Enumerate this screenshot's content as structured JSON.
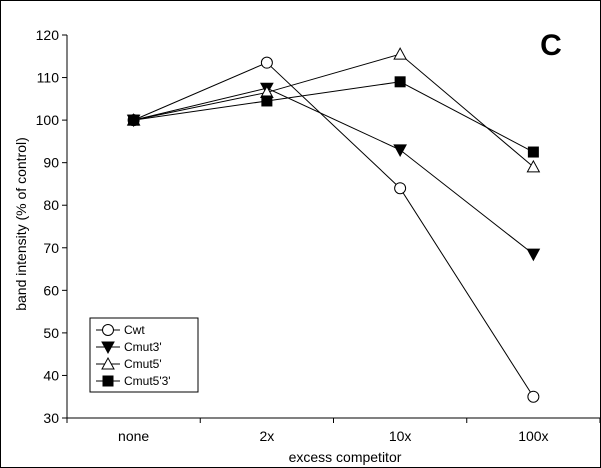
{
  "chart_data": {
    "type": "line",
    "panel_label": "C",
    "title": "",
    "xlabel": "excess competitor",
    "ylabel": "band intensity (% of control)",
    "categories": [
      "none",
      "2x",
      "10x",
      "100x"
    ],
    "ylim": [
      30,
      120
    ],
    "yticks": [
      30,
      40,
      50,
      60,
      70,
      80,
      90,
      100,
      110,
      120
    ],
    "grid": false,
    "legend_position": "bottom-left",
    "series": [
      {
        "name": "Cwt",
        "marker": "circle-open",
        "values": [
          100,
          113.5,
          84,
          35
        ]
      },
      {
        "name": "Cmut3'",
        "marker": "triangle-down-filled",
        "values": [
          100,
          107.5,
          93,
          68.5
        ]
      },
      {
        "name": "Cmut5'",
        "marker": "triangle-up-open",
        "values": [
          100,
          106.5,
          115.5,
          89
        ]
      },
      {
        "name": "Cmut5'3'",
        "marker": "square-filled",
        "values": [
          100,
          104.5,
          109,
          92.5
        ]
      }
    ]
  }
}
